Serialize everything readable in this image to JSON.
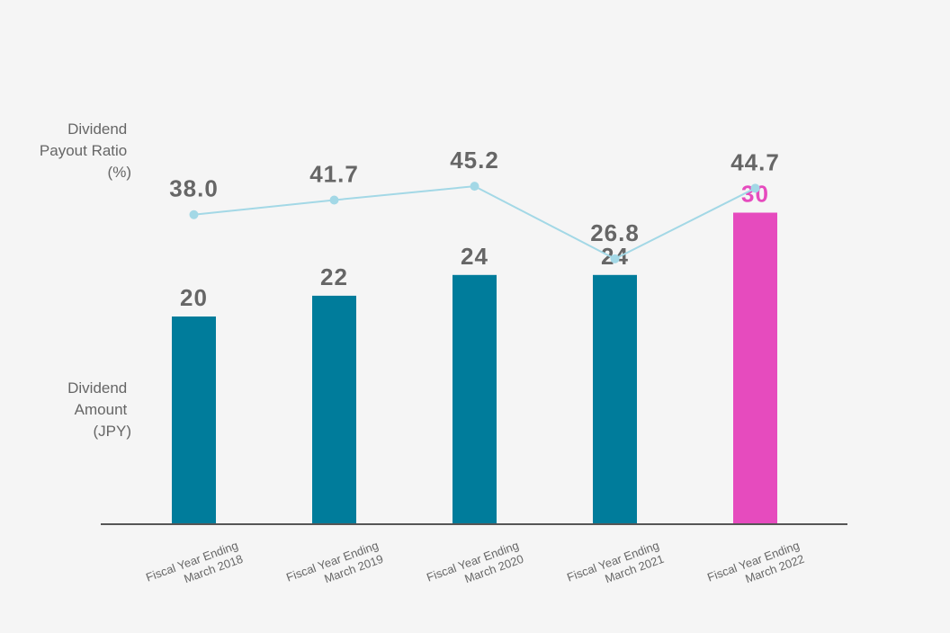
{
  "chart_data": {
    "type": "bar",
    "categories": [
      [
        "Fiscal Year Ending",
        "March 2018"
      ],
      [
        "Fiscal Year Ending",
        "March 2019"
      ],
      [
        "Fiscal Year Ending",
        "March 2020"
      ],
      [
        "Fiscal Year Ending",
        "March 2021"
      ],
      [
        "Fiscal Year Ending",
        "March 2022"
      ]
    ],
    "series": [
      {
        "name": "Dividend Amount (JPY)",
        "type": "bar",
        "values": [
          20,
          22,
          24,
          24,
          30
        ],
        "labels": [
          "20",
          "22",
          "24",
          "24",
          "30"
        ],
        "color": "#007c9b",
        "highlight_index": 4,
        "highlight_color": "#e64bbe"
      },
      {
        "name": "Dividend Payout Ratio (%)",
        "type": "line",
        "values": [
          38.0,
          41.7,
          45.2,
          26.8,
          44.7
        ],
        "labels": [
          "38.0",
          "41.7",
          "45.2",
          "26.8",
          "44.7"
        ],
        "color": "#a3d8e6"
      }
    ],
    "bar_axis_label": [
      "Dividend",
      "Amount",
      "(JPY)"
    ],
    "line_axis_label": [
      "Dividend",
      "Payout Ratio",
      "(%)"
    ],
    "label_color": "#666666",
    "baseline_color": "#555555",
    "grid": false,
    "legend": "none"
  }
}
